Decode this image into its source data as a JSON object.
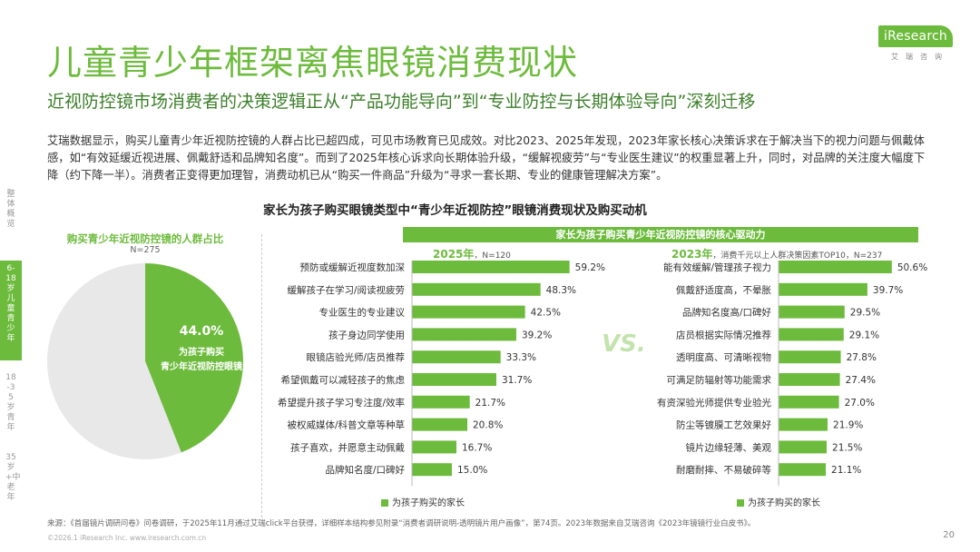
{
  "brand": {
    "logo_text": "iResearch",
    "logo_sub": "艾瑞咨询"
  },
  "title": "儿童青少年框架离焦眼镜消费现状",
  "subtitle": "近视防控镜市场消费者的决策逻辑正从“产品功能导向”到“专业防控与长期体验导向”深刻迁移",
  "intro": "艾瑞数据显示，购买儿童青少年近视防控镜的人群占比已超四成，可见市场教育已见成效。对比2023、2025年发现，2023年家长核心决策诉求在于解决当下的视力问题与佩戴体感，如“有效延缓近视进展、佩戴舒适和品牌知名度”。而到了2025年核心诉求向长期体验升级，“缓解视疲劳”与“专业医生建议”的权重显著上升，同时，对品牌的关注度大幅度下降（约下降一半）。消费者正变得更加理智，消费动机已从“购买一件商品”升级为“寻求一套长期、专业的健康管理解决方案”。",
  "sidebar": [
    {
      "label": "整体概览",
      "active": false
    },
    {
      "label": "6-18岁儿童青少年",
      "active": true
    },
    {
      "label": "18-35岁青年",
      "active": false
    },
    {
      "label": "35岁+中老年",
      "active": false
    }
  ],
  "chart_title": "家长为孩子购买眼镜类型中“青少年近视防控”眼镜消费现状及购买动机",
  "pie": {
    "title": "购买青少年近视防控镜的人群占比",
    "n": "N=275",
    "value_label": "44.0%",
    "label_line1": "为孩子购买",
    "label_line2": "青少年近视防控眼镜",
    "colors": {
      "main": "#6dbb3d",
      "rest": "#e8e8e8"
    }
  },
  "panel_title": "家长为孩子购买青少年近视防控镜的核心驱动力",
  "year2025": {
    "year": "2025年",
    "n": "N=120"
  },
  "year2023": {
    "year": "2023年",
    "n": "消费千元以上人群决策因素TOP10，N=237"
  },
  "vs": "VS.",
  "legend_label": "为孩子购买的家长",
  "chart_data": [
    {
      "type": "pie",
      "title": "购买青少年近视防控镜的人群占比",
      "categories": [
        "为孩子购买青少年近视防控眼镜",
        "其他"
      ],
      "values": [
        44.0,
        56.0
      ]
    },
    {
      "type": "bar",
      "title": "2025年",
      "orientation": "horizontal",
      "categories": [
        "预防或缓解近视度数加深",
        "缓解孩子在学习/阅读视疲劳",
        "专业医生的专业建议",
        "孩子身边同学使用",
        "眼镜店验光师/店员推荐",
        "希望佩戴可以减轻孩子的焦虑",
        "希望提升孩子学习专注度/效率",
        "被权威媒体/科普文章等种草",
        "孩子喜欢，并愿意主动佩戴",
        "品牌知名度/口碑好"
      ],
      "values": [
        59.2,
        48.3,
        42.5,
        39.2,
        33.3,
        31.7,
        21.7,
        20.8,
        16.7,
        15.0
      ],
      "value_labels": [
        "59.2%",
        "48.3%",
        "42.5%",
        "39.2%",
        "33.3%",
        "31.7%",
        "21.7%",
        "20.8%",
        "16.7%",
        "15.0%"
      ],
      "series_name": "为孩子购买的家长",
      "xlim": [
        0,
        100
      ]
    },
    {
      "type": "bar",
      "title": "2023年",
      "orientation": "horizontal",
      "categories": [
        "能有效缓解/管理孩子视力",
        "佩戴舒适度高，不晕胀",
        "品牌知名度高/口碑好",
        "店员根据实际情况推荐",
        "透明度高、可清晰视物",
        "可满足防辐射等功能需求",
        "有资深验光师提供专业验光",
        "防尘等镀膜工艺效果好",
        "镜片边缘轻薄、美观",
        "耐磨耐摔、不易破碎等"
      ],
      "values": [
        50.6,
        39.7,
        29.5,
        29.1,
        27.8,
        27.4,
        27.0,
        21.9,
        21.5,
        21.1
      ],
      "value_labels": [
        "50.6%",
        "39.7%",
        "29.5%",
        "29.1%",
        "27.8%",
        "27.4%",
        "27.0%",
        "21.9%",
        "21.5%",
        "21.1%"
      ],
      "series_name": "为孩子购买的家长",
      "xlim": [
        0,
        100
      ]
    }
  ],
  "colors": {
    "accent": "#6dbb3d"
  },
  "source": "来源：《首届镜片调研问卷》问卷调研，于2025年11月通过艾瑞click平台获得，详细样本结构参见附录“消费者调研说明-透明镜片用户画像”，第74页。2023年数据来自艾瑞咨询《2023年镜镜行业白皮书》。",
  "footer": "©2026.1 iResearch Inc.                    www.iresearch.com.cn",
  "page_number": "20"
}
